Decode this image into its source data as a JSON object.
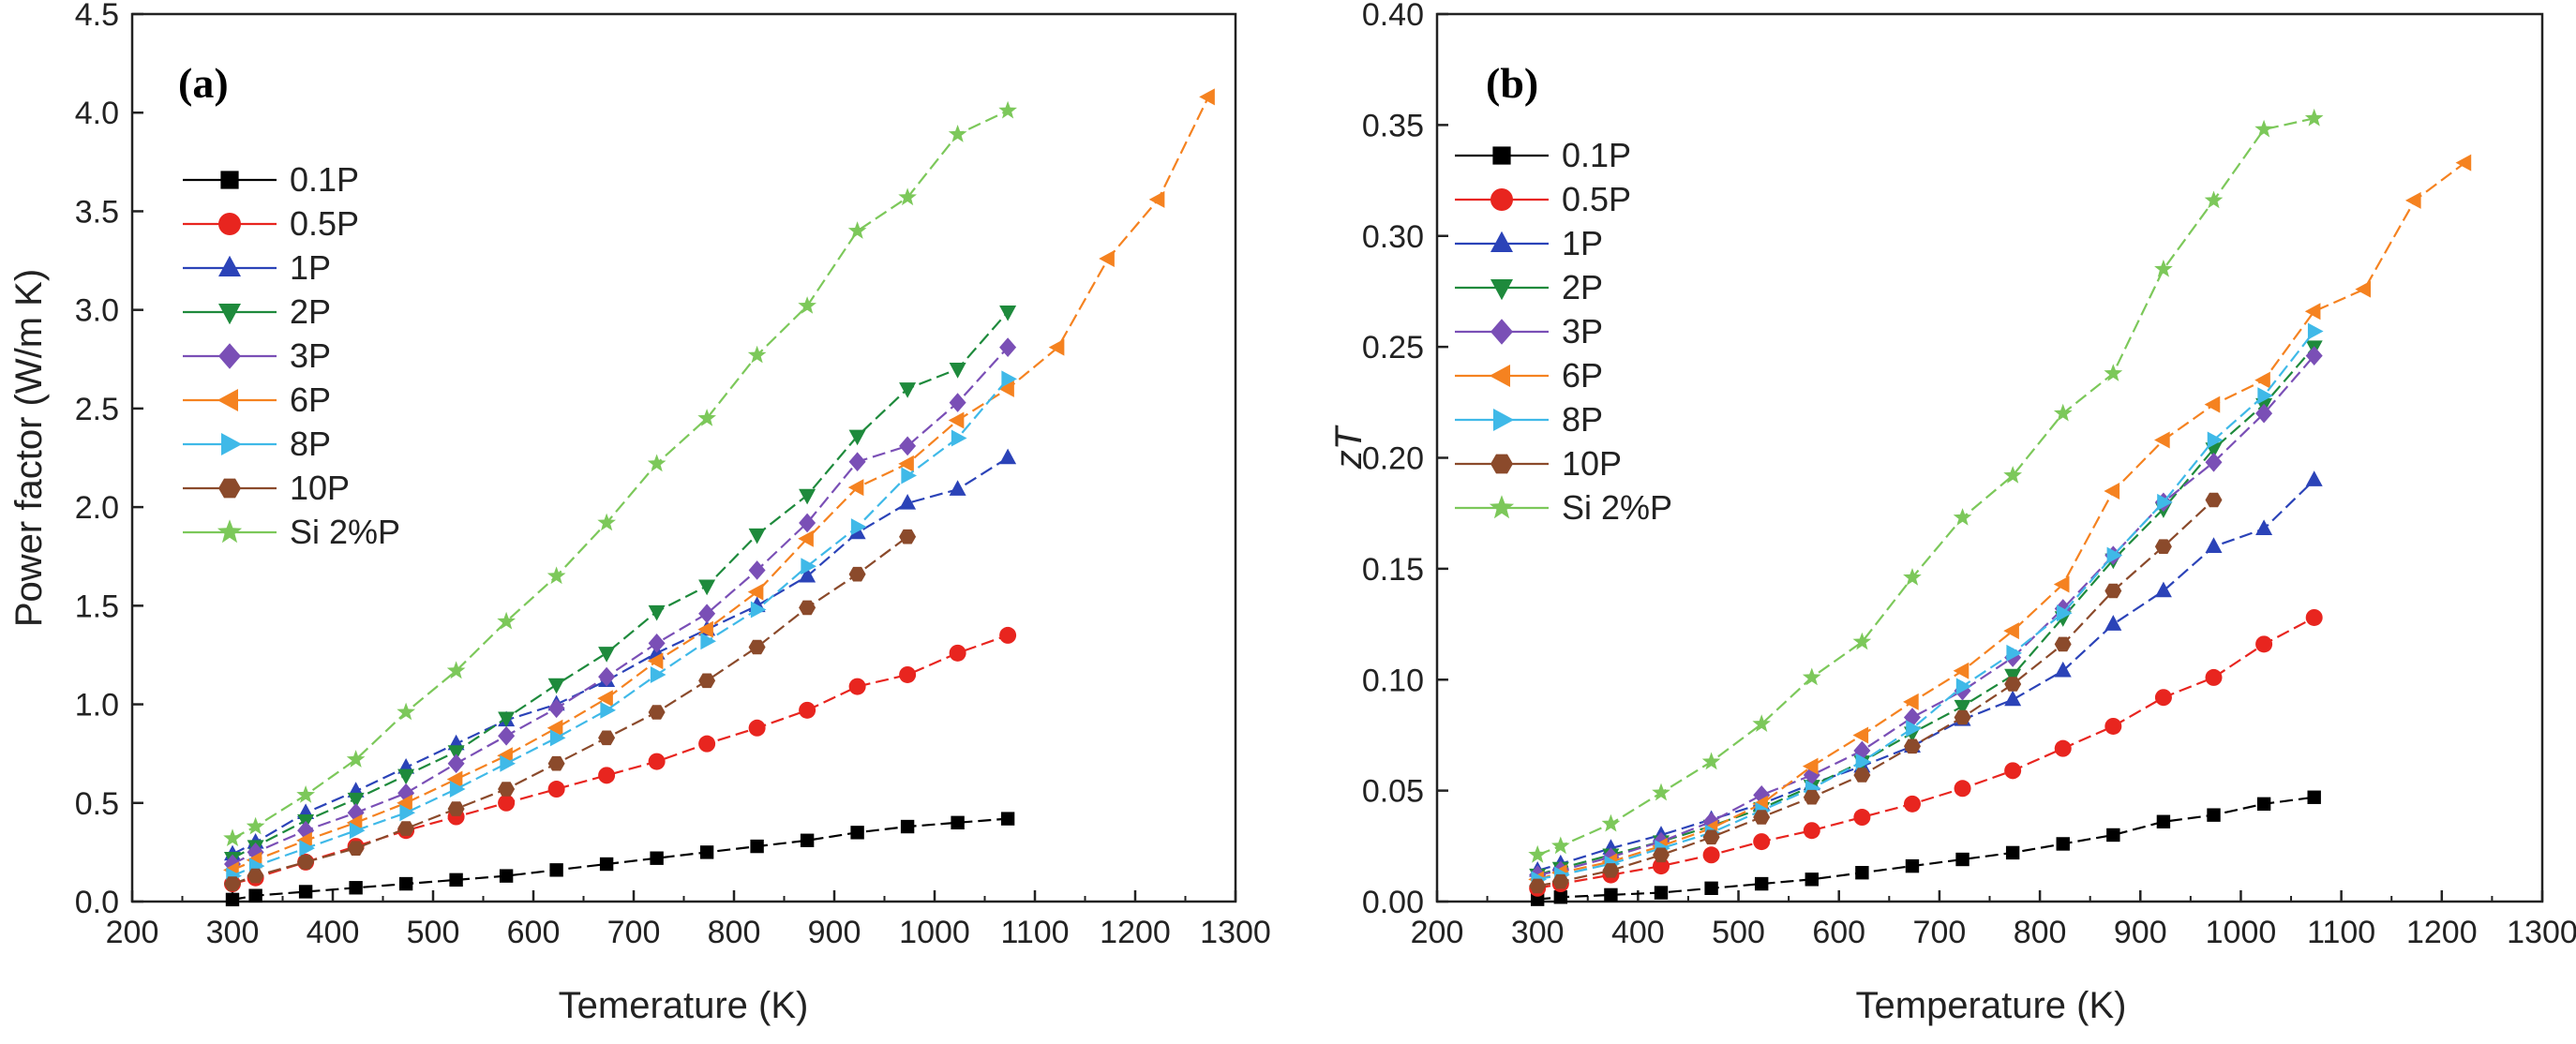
{
  "chart_data": [
    {
      "type": "line",
      "panel_label": "(a)",
      "title": "",
      "xlabel": "Temerature (K)",
      "ylabel": "Power factor (W/m K)",
      "xlim": [
        200,
        1300
      ],
      "ylim": [
        0,
        4.5
      ],
      "xticks": [
        200,
        300,
        400,
        500,
        600,
        700,
        800,
        900,
        1000,
        1100,
        1200,
        1300
      ],
      "yticks": [
        0.0,
        0.5,
        1.0,
        1.5,
        2.0,
        2.5,
        3.0,
        3.5,
        4.0,
        4.5
      ],
      "ytick_labels": [
        "0.0",
        "0.5",
        "1.0",
        "1.5",
        "2.0",
        "2.5",
        "3.0",
        "3.5",
        "4.0",
        "4.5"
      ],
      "legend_position": "upper-left",
      "series": [
        {
          "name": "0.1P",
          "color": "#000000",
          "marker": "square",
          "x": [
            300,
            323,
            373,
            423,
            473,
            523,
            573,
            623,
            673,
            723,
            773,
            823,
            873,
            923,
            973,
            1023,
            1073
          ],
          "y": [
            0.01,
            0.03,
            0.05,
            0.07,
            0.09,
            0.11,
            0.13,
            0.16,
            0.19,
            0.22,
            0.25,
            0.28,
            0.31,
            0.35,
            0.38,
            0.4,
            0.42
          ]
        },
        {
          "name": "0.5P",
          "color": "#e8251f",
          "marker": "circle",
          "x": [
            300,
            323,
            373,
            423,
            473,
            523,
            573,
            623,
            673,
            723,
            773,
            823,
            873,
            923,
            973,
            1023,
            1073
          ],
          "y": [
            0.09,
            0.12,
            0.2,
            0.28,
            0.36,
            0.43,
            0.5,
            0.57,
            0.64,
            0.71,
            0.8,
            0.88,
            0.97,
            1.09,
            1.15,
            1.26,
            1.35
          ]
        },
        {
          "name": "1P",
          "color": "#2b43b8",
          "marker": "triangle-up",
          "x": [
            300,
            323,
            373,
            423,
            473,
            523,
            573,
            623,
            673,
            723,
            773,
            823,
            873,
            923,
            973,
            1023,
            1073
          ],
          "y": [
            0.24,
            0.3,
            0.45,
            0.56,
            0.68,
            0.8,
            0.92,
            1.0,
            1.12,
            1.26,
            1.38,
            1.5,
            1.65,
            1.87,
            2.02,
            2.09,
            2.25
          ]
        },
        {
          "name": "2P",
          "color": "#1e8a3c",
          "marker": "triangle-down",
          "x": [
            300,
            323,
            373,
            423,
            473,
            523,
            573,
            623,
            673,
            723,
            773,
            823,
            873,
            923,
            973,
            1023,
            1073
          ],
          "y": [
            0.22,
            0.28,
            0.41,
            0.52,
            0.64,
            0.76,
            0.93,
            1.1,
            1.26,
            1.47,
            1.6,
            1.86,
            2.06,
            2.36,
            2.6,
            2.7,
            2.99
          ]
        },
        {
          "name": "3P",
          "color": "#7a4fb6",
          "marker": "diamond",
          "x": [
            300,
            323,
            373,
            423,
            473,
            523,
            573,
            623,
            673,
            723,
            773,
            823,
            873,
            923,
            973,
            1023,
            1073
          ],
          "y": [
            0.19,
            0.25,
            0.36,
            0.45,
            0.55,
            0.7,
            0.84,
            0.98,
            1.14,
            1.31,
            1.46,
            1.68,
            1.92,
            2.23,
            2.31,
            2.53,
            2.81
          ]
        },
        {
          "name": "6P",
          "color": "#f58220",
          "marker": "triangle-left",
          "x": [
            300,
            323,
            373,
            423,
            473,
            523,
            573,
            623,
            673,
            723,
            773,
            823,
            873,
            923,
            973,
            1023,
            1073,
            1123,
            1173,
            1223,
            1273
          ],
          "y": [
            0.16,
            0.21,
            0.31,
            0.4,
            0.5,
            0.62,
            0.74,
            0.88,
            1.03,
            1.22,
            1.38,
            1.57,
            1.84,
            2.1,
            2.22,
            2.44,
            2.6,
            2.81,
            3.26,
            3.56,
            4.08
          ]
        },
        {
          "name": "8P",
          "color": "#3fb9e8",
          "marker": "triangle-right",
          "x": [
            300,
            323,
            373,
            423,
            473,
            523,
            573,
            623,
            673,
            723,
            773,
            823,
            873,
            923,
            973,
            1023,
            1073
          ],
          "y": [
            0.13,
            0.18,
            0.27,
            0.36,
            0.45,
            0.57,
            0.7,
            0.83,
            0.97,
            1.15,
            1.32,
            1.48,
            1.7,
            1.9,
            2.16,
            2.35,
            2.65
          ]
        },
        {
          "name": "10P",
          "color": "#8b4a2b",
          "marker": "hexagon",
          "x": [
            300,
            323,
            373,
            423,
            473,
            523,
            573,
            623,
            673,
            723,
            773,
            823,
            873,
            923,
            973
          ],
          "y": [
            0.09,
            0.13,
            0.2,
            0.27,
            0.37,
            0.47,
            0.57,
            0.7,
            0.83,
            0.96,
            1.12,
            1.29,
            1.49,
            1.66,
            1.85
          ]
        },
        {
          "name": "Si 2%P",
          "color": "#7cc85a",
          "marker": "star",
          "x": [
            300,
            323,
            373,
            423,
            473,
            523,
            573,
            623,
            673,
            723,
            773,
            823,
            873,
            923,
            973,
            1023,
            1073
          ],
          "y": [
            0.32,
            0.38,
            0.54,
            0.72,
            0.96,
            1.17,
            1.42,
            1.65,
            1.92,
            2.22,
            2.45,
            2.77,
            3.02,
            3.4,
            3.57,
            3.89,
            4.01
          ]
        }
      ]
    },
    {
      "type": "line",
      "panel_label": "(b)",
      "title": "",
      "xlabel": "Temperature (K)",
      "ylabel": "zT",
      "xlim": [
        200,
        1300
      ],
      "ylim": [
        0,
        0.4
      ],
      "xticks": [
        200,
        300,
        400,
        500,
        600,
        700,
        800,
        900,
        1000,
        1100,
        1200,
        1300
      ],
      "yticks": [
        0.0,
        0.05,
        0.1,
        0.15,
        0.2,
        0.25,
        0.3,
        0.35,
        0.4
      ],
      "ytick_labels": [
        "0.00",
        "0.05",
        "0.10",
        "0.15",
        "0.20",
        "0.25",
        "0.30",
        "0.35",
        "0.40"
      ],
      "legend_position": "upper-left",
      "series": [
        {
          "name": "0.1P",
          "color": "#000000",
          "marker": "square",
          "x": [
            300,
            323,
            373,
            423,
            473,
            523,
            573,
            623,
            673,
            723,
            773,
            823,
            873,
            923,
            973,
            1023,
            1073
          ],
          "y": [
            0.001,
            0.002,
            0.003,
            0.004,
            0.006,
            0.008,
            0.01,
            0.013,
            0.016,
            0.019,
            0.022,
            0.026,
            0.03,
            0.036,
            0.039,
            0.044,
            0.047
          ]
        },
        {
          "name": "0.5P",
          "color": "#e8251f",
          "marker": "circle",
          "x": [
            300,
            323,
            373,
            423,
            473,
            523,
            573,
            623,
            673,
            723,
            773,
            823,
            873,
            923,
            973,
            1023,
            1073
          ],
          "y": [
            0.006,
            0.008,
            0.012,
            0.016,
            0.021,
            0.027,
            0.032,
            0.038,
            0.044,
            0.051,
            0.059,
            0.069,
            0.079,
            0.092,
            0.101,
            0.116,
            0.128
          ]
        },
        {
          "name": "1P",
          "color": "#2b43b8",
          "marker": "triangle-up",
          "x": [
            300,
            323,
            373,
            423,
            473,
            523,
            573,
            623,
            673,
            723,
            773,
            823,
            873,
            923,
            973,
            1023,
            1073
          ],
          "y": [
            0.014,
            0.017,
            0.024,
            0.03,
            0.037,
            0.044,
            0.053,
            0.061,
            0.07,
            0.082,
            0.091,
            0.104,
            0.125,
            0.14,
            0.16,
            0.168,
            0.19
          ]
        },
        {
          "name": "2P",
          "color": "#1e8a3c",
          "marker": "triangle-down",
          "x": [
            300,
            323,
            373,
            423,
            473,
            523,
            573,
            623,
            673,
            723,
            773,
            823,
            873,
            923,
            973,
            1023,
            1073
          ],
          "y": [
            0.012,
            0.015,
            0.021,
            0.027,
            0.034,
            0.042,
            0.052,
            0.063,
            0.076,
            0.088,
            0.102,
            0.128,
            0.154,
            0.177,
            0.204,
            0.224,
            0.25
          ]
        },
        {
          "name": "3P",
          "color": "#7a4fb6",
          "marker": "diamond",
          "x": [
            300,
            323,
            373,
            423,
            473,
            523,
            573,
            623,
            673,
            723,
            773,
            823,
            873,
            923,
            973,
            1023,
            1073
          ],
          "y": [
            0.012,
            0.014,
            0.02,
            0.027,
            0.036,
            0.048,
            0.057,
            0.068,
            0.083,
            0.095,
            0.11,
            0.132,
            0.156,
            0.18,
            0.198,
            0.22,
            0.246
          ]
        },
        {
          "name": "6P",
          "color": "#f58220",
          "marker": "triangle-left",
          "x": [
            300,
            323,
            373,
            423,
            473,
            523,
            573,
            623,
            673,
            723,
            773,
            823,
            873,
            923,
            973,
            1023,
            1073,
            1123,
            1173,
            1223
          ],
          "y": [
            0.01,
            0.013,
            0.018,
            0.025,
            0.033,
            0.044,
            0.061,
            0.075,
            0.09,
            0.104,
            0.122,
            0.143,
            0.185,
            0.208,
            0.224,
            0.235,
            0.266,
            0.276,
            0.316,
            0.333
          ]
        },
        {
          "name": "8P",
          "color": "#3fb9e8",
          "marker": "triangle-right",
          "x": [
            300,
            323,
            373,
            423,
            473,
            523,
            573,
            623,
            673,
            723,
            773,
            823,
            873,
            923,
            973,
            1023,
            1073
          ],
          "y": [
            0.01,
            0.012,
            0.017,
            0.024,
            0.031,
            0.041,
            0.051,
            0.063,
            0.078,
            0.097,
            0.112,
            0.13,
            0.156,
            0.18,
            0.208,
            0.228,
            0.257
          ]
        },
        {
          "name": "10P",
          "color": "#8b4a2b",
          "marker": "hexagon",
          "x": [
            300,
            323,
            373,
            423,
            473,
            523,
            573,
            623,
            673,
            723,
            773,
            823,
            873,
            923,
            973
          ],
          "y": [
            0.007,
            0.009,
            0.014,
            0.021,
            0.029,
            0.038,
            0.047,
            0.057,
            0.07,
            0.083,
            0.098,
            0.116,
            0.14,
            0.16,
            0.181
          ]
        },
        {
          "name": "Si 2%P",
          "color": "#7cc85a",
          "marker": "star",
          "x": [
            300,
            323,
            373,
            423,
            473,
            523,
            573,
            623,
            673,
            723,
            773,
            823,
            873,
            923,
            973,
            1023,
            1073
          ],
          "y": [
            0.021,
            0.025,
            0.035,
            0.049,
            0.063,
            0.08,
            0.101,
            0.117,
            0.146,
            0.173,
            0.192,
            0.22,
            0.238,
            0.285,
            0.316,
            0.348,
            0.353
          ]
        }
      ]
    }
  ]
}
